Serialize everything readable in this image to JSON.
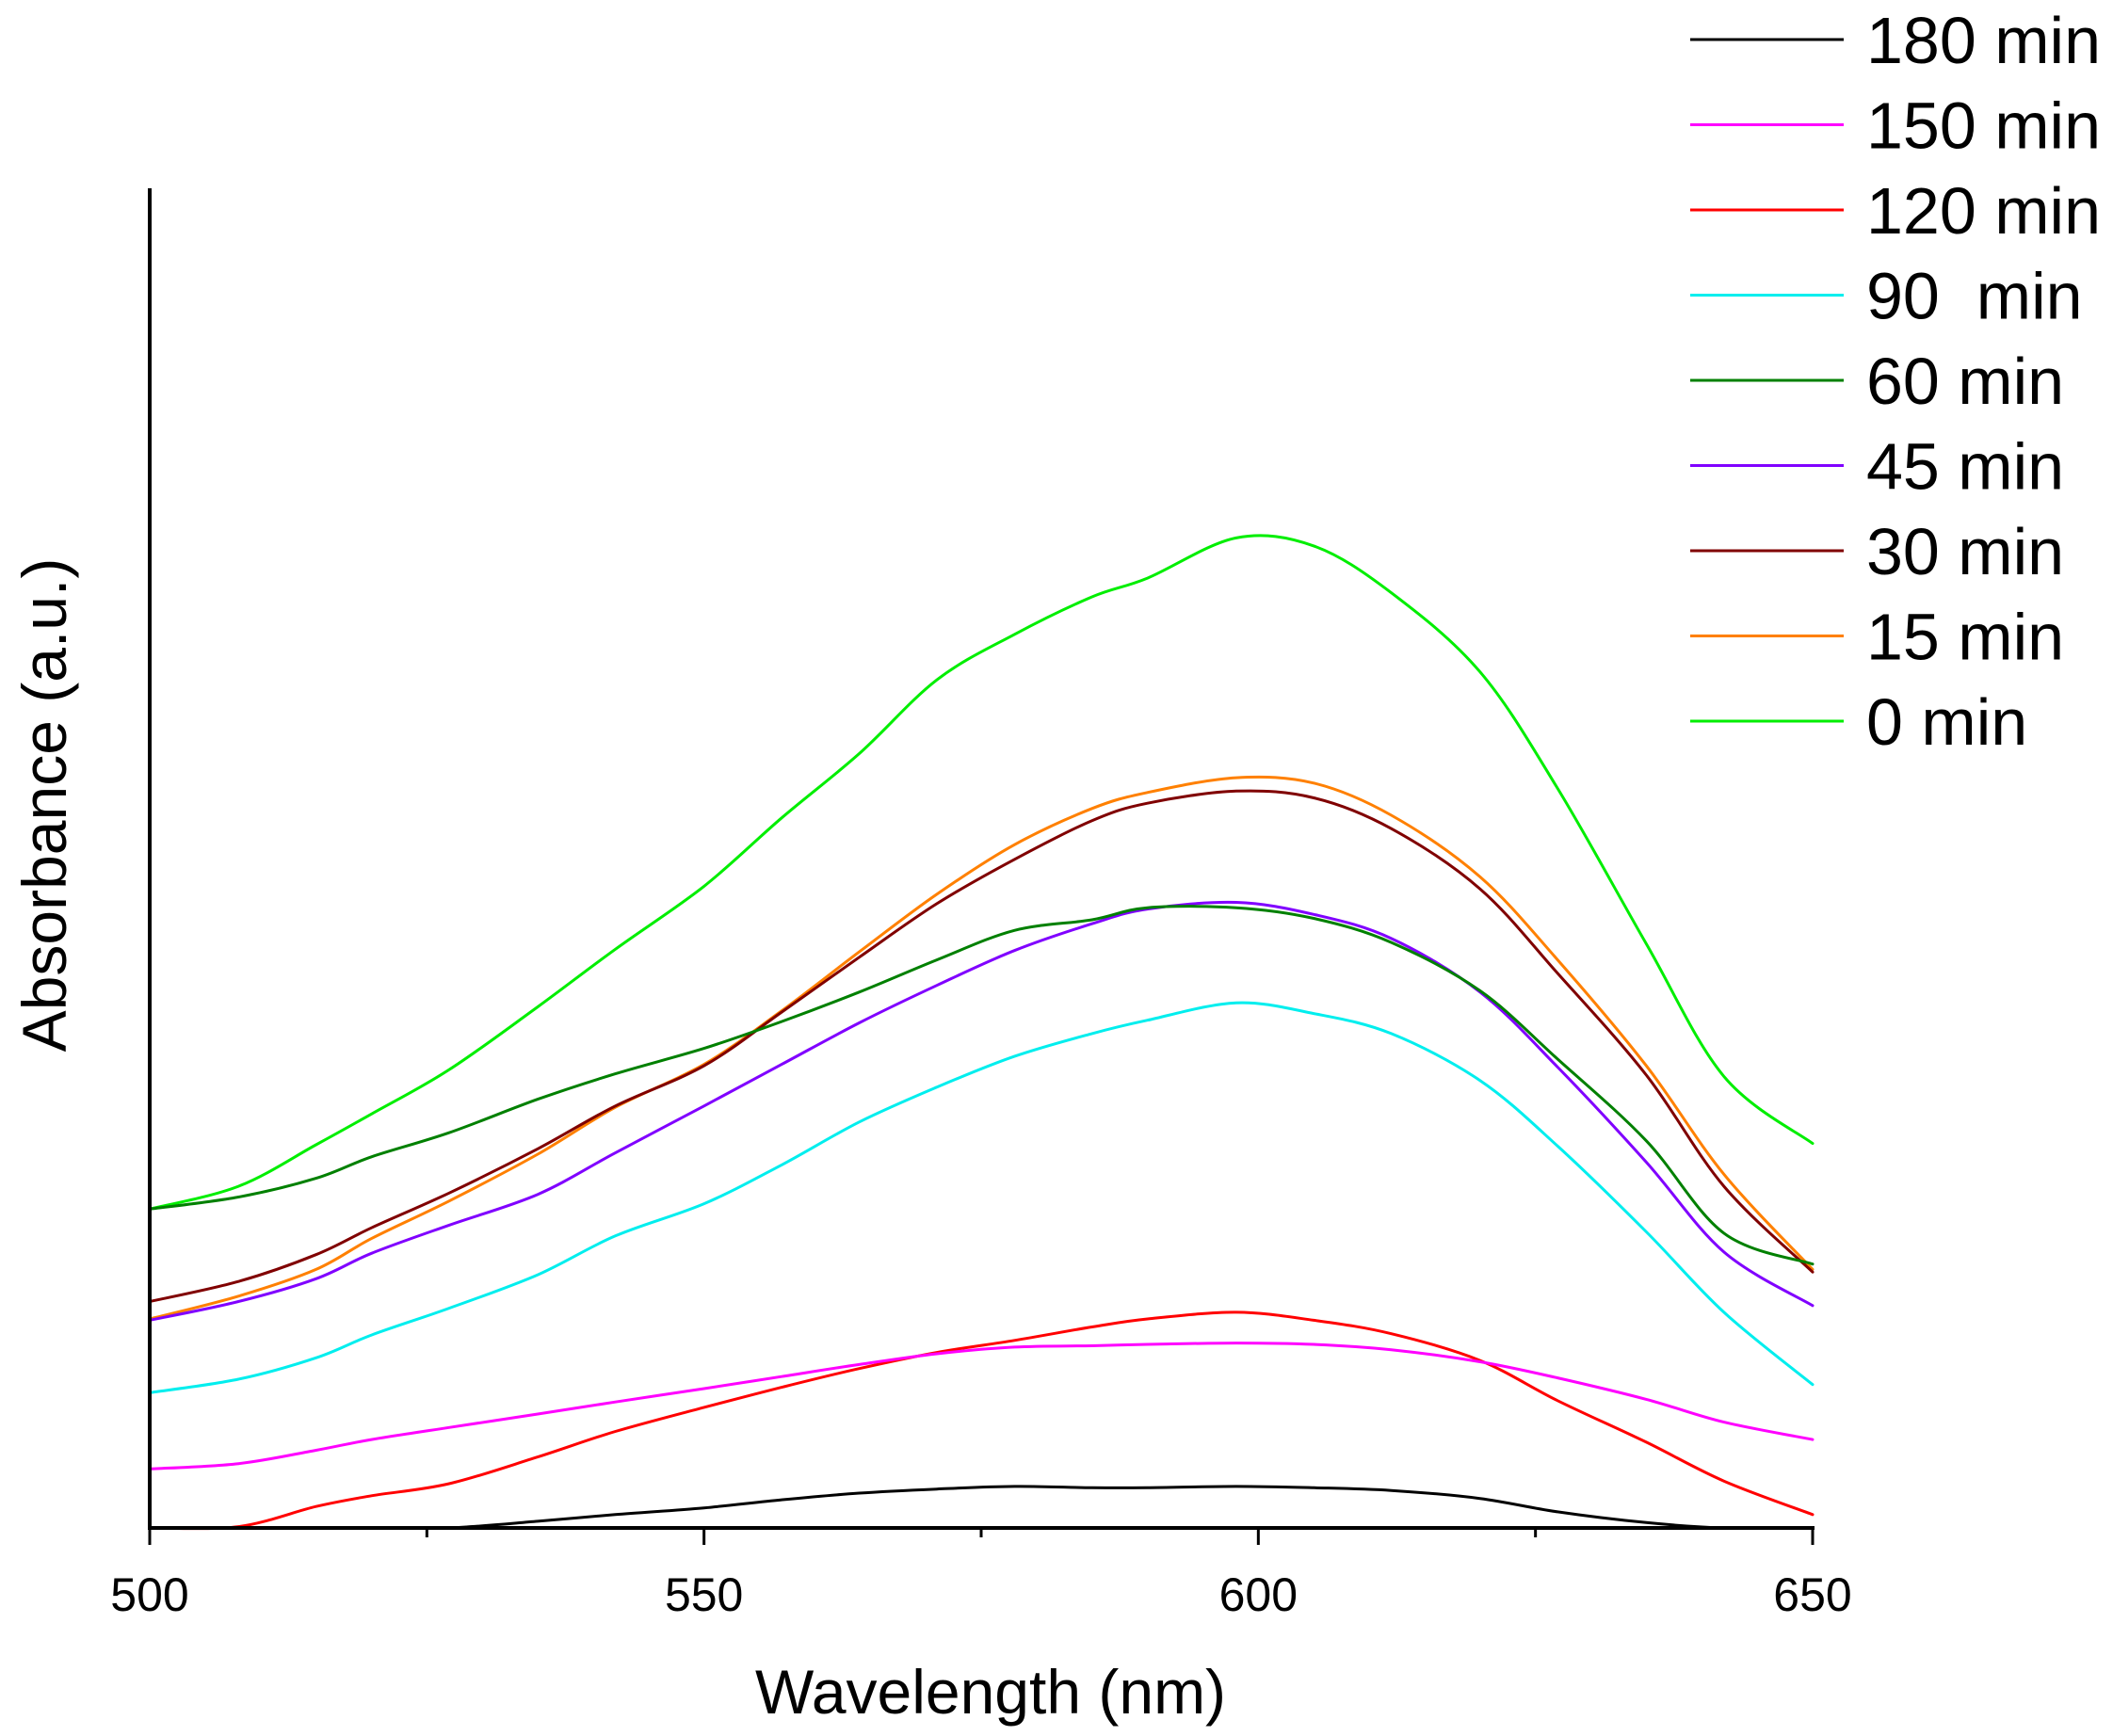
{
  "chart_data": {
    "type": "line",
    "title": "",
    "xlabel": "Wavelength (nm)",
    "ylabel": "Absorbance (a.u.)",
    "xlim": [
      500,
      650
    ],
    "ylim": [
      0,
      1.0
    ],
    "x_ticks": [
      500,
      550,
      600,
      650
    ],
    "x_tick_labels": [
      "500",
      "550",
      "600",
      "650"
    ],
    "y_ticks_shown": false,
    "grid": false,
    "legend_position": "top-right",
    "x": [
      500,
      508,
      515,
      520,
      527,
      535,
      542,
      550,
      557,
      564,
      571,
      578,
      585,
      590,
      598,
      605,
      612,
      620,
      627,
      635,
      642,
      650
    ],
    "series": [
      {
        "name": "180 min",
        "color": "#000000",
        "values": [
          0.0,
          0.0,
          0.0,
          0.0,
          0.0,
          0.005,
          0.01,
          0.015,
          0.021,
          0.026,
          0.029,
          0.031,
          0.03,
          0.03,
          0.031,
          0.03,
          0.028,
          0.022,
          0.012,
          0.004,
          0.0,
          0.0
        ]
      },
      {
        "name": "150 min",
        "color": "#ff00ff",
        "values": [
          0.044,
          0.048,
          0.058,
          0.066,
          0.075,
          0.085,
          0.094,
          0.104,
          0.113,
          0.122,
          0.13,
          0.135,
          0.136,
          0.137,
          0.138,
          0.137,
          0.133,
          0.124,
          0.112,
          0.096,
          0.079,
          0.066
        ]
      },
      {
        "name": "120 min",
        "color": "#ff0000",
        "values": [
          0.0,
          0.001,
          0.016,
          0.024,
          0.033,
          0.053,
          0.072,
          0.09,
          0.105,
          0.119,
          0.131,
          0.14,
          0.15,
          0.156,
          0.161,
          0.155,
          0.145,
          0.125,
          0.095,
          0.064,
          0.035,
          0.01
        ]
      },
      {
        "name": "90  min",
        "color": "#00eeee",
        "values": [
          0.101,
          0.111,
          0.127,
          0.144,
          0.164,
          0.189,
          0.218,
          0.242,
          0.271,
          0.303,
          0.329,
          0.352,
          0.369,
          0.379,
          0.392,
          0.384,
          0.369,
          0.334,
          0.285,
          0.221,
          0.161,
          0.107
        ]
      },
      {
        "name": "60 min",
        "color": "#008000",
        "values": [
          0.238,
          0.247,
          0.261,
          0.277,
          0.295,
          0.32,
          0.339,
          0.358,
          0.378,
          0.4,
          0.424,
          0.446,
          0.454,
          0.463,
          0.463,
          0.455,
          0.437,
          0.401,
          0.35,
          0.289,
          0.22,
          0.197
        ]
      },
      {
        "name": "45 min",
        "color": "#8000ff",
        "values": [
          0.155,
          0.169,
          0.186,
          0.205,
          0.226,
          0.249,
          0.28,
          0.315,
          0.346,
          0.377,
          0.405,
          0.431,
          0.451,
          0.462,
          0.467,
          0.458,
          0.44,
          0.4,
          0.344,
          0.273,
          0.206,
          0.166
        ]
      },
      {
        "name": "30 min",
        "color": "#800000",
        "values": [
          0.169,
          0.184,
          0.204,
          0.224,
          0.25,
          0.283,
          0.315,
          0.345,
          0.385,
          0.426,
          0.466,
          0.499,
          0.528,
          0.541,
          0.55,
          0.545,
          0.522,
          0.477,
          0.414,
          0.338,
          0.255,
          0.191
        ]
      },
      {
        "name": "15 min",
        "color": "#ff8000",
        "values": [
          0.156,
          0.173,
          0.193,
          0.216,
          0.244,
          0.279,
          0.314,
          0.346,
          0.386,
          0.43,
          0.473,
          0.51,
          0.537,
          0.549,
          0.56,
          0.556,
          0.532,
          0.486,
          0.424,
          0.345,
          0.264,
          0.193
        ]
      },
      {
        "name": "0 min",
        "color": "#00ee00",
        "values": [
          0.238,
          0.255,
          0.286,
          0.309,
          0.342,
          0.389,
          0.432,
          0.479,
          0.53,
          0.578,
          0.633,
          0.667,
          0.695,
          0.709,
          0.739,
          0.733,
          0.698,
          0.639,
          0.552,
          0.436,
          0.337,
          0.287
        ]
      }
    ]
  }
}
